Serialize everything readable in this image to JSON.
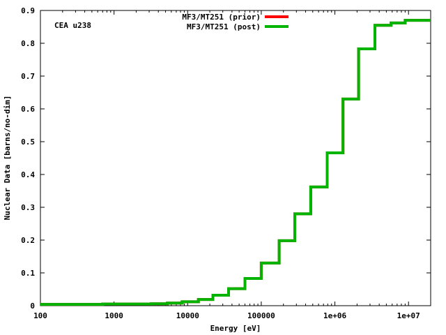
{
  "chart_data": {
    "type": "line",
    "xlabel": "Energy [eV]",
    "ylabel": "Nuclear Data [barns/no-dim]",
    "x_scale": "log",
    "xlim": [
      100,
      20000000
    ],
    "ylim": [
      0,
      0.9
    ],
    "x_ticks": [
      {
        "value": 100,
        "label": "100"
      },
      {
        "value": 1000,
        "label": "1000"
      },
      {
        "value": 10000,
        "label": "10000"
      },
      {
        "value": 100000,
        "label": "100000"
      },
      {
        "value": 1000000,
        "label": "1e+06"
      },
      {
        "value": 10000000,
        "label": "1e+07"
      }
    ],
    "y_ticks": [
      {
        "value": 0,
        "label": "0"
      },
      {
        "value": 0.1,
        "label": "0.1"
      },
      {
        "value": 0.2,
        "label": "0.2"
      },
      {
        "value": 0.3,
        "label": "0.3"
      },
      {
        "value": 0.4,
        "label": "0.4"
      },
      {
        "value": 0.5,
        "label": "0.5"
      },
      {
        "value": 0.6,
        "label": "0.6"
      },
      {
        "value": 0.7,
        "label": "0.7"
      },
      {
        "value": 0.8,
        "label": "0.8"
      },
      {
        "value": 0.9,
        "label": "0.9"
      }
    ],
    "annotation": "CEA u238",
    "legend_position": "top-center",
    "series": [
      {
        "name": "MF3/MT251 (prior)",
        "color": "#ff0000",
        "style": "step",
        "x": [
          100,
          700,
          3200,
          5300,
          8400,
          14000,
          22000,
          36000,
          60000,
          100000,
          175000,
          285000,
          470000,
          785000,
          1290000,
          2100000,
          3500000,
          5800000,
          9000000
        ],
        "y": [
          0.004,
          0.005,
          0.006,
          0.008,
          0.012,
          0.019,
          0.032,
          0.052,
          0.083,
          0.13,
          0.198,
          0.28,
          0.362,
          0.466,
          0.63,
          0.783,
          0.855,
          0.862,
          0.87
        ],
        "x_end": 20000000
      },
      {
        "name": "MF3/MT251 (post)",
        "color": "#00b400",
        "style": "step",
        "x": [
          100,
          700,
          3200,
          5300,
          8400,
          14000,
          22000,
          36000,
          60000,
          100000,
          175000,
          285000,
          470000,
          785000,
          1290000,
          2100000,
          3500000,
          5800000,
          9000000
        ],
        "y": [
          0.004,
          0.005,
          0.006,
          0.008,
          0.012,
          0.019,
          0.032,
          0.052,
          0.083,
          0.13,
          0.198,
          0.28,
          0.362,
          0.466,
          0.63,
          0.783,
          0.855,
          0.862,
          0.87
        ],
        "x_end": 20000000
      }
    ]
  }
}
